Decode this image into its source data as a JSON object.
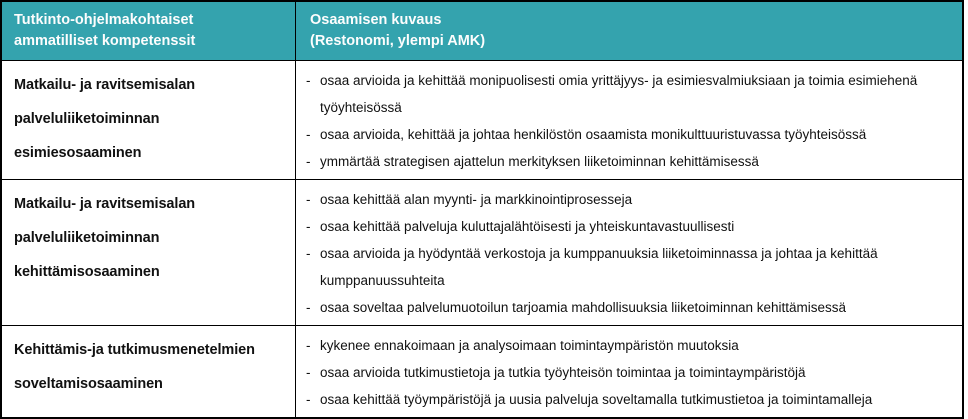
{
  "colors": {
    "header_bg": "#34A3AE",
    "header_text": "#FDFDFD",
    "border": "#000000",
    "body_text": "#111111"
  },
  "table": {
    "list_marker": "-",
    "header": {
      "col1_line1": "Tutkinto-ohjelmakohtaiset",
      "col1_line2": "ammatilliset kompetenssit",
      "col2_line1": "Osaamisen kuvaus",
      "col2_line2": "(Restonomi, ylempi AMK)"
    },
    "rows": [
      {
        "competence": "Matkailu- ja ravitsemisalan palveluliiketoiminnan esimiesosaaminen",
        "items": [
          "osaa arvioida ja kehittää monipuolisesti omia yrittäjyys- ja esimiesvalmiuksiaan ja toimia esimiehenä työyhteisössä",
          "osaa arvioida, kehittää ja johtaa henkilöstön osaamista monikulttuuristuvassa työyhteisössä",
          "ymmärtää strategisen ajattelun merkityksen liiketoiminnan kehittämisessä"
        ]
      },
      {
        "competence": "Matkailu- ja ravitsemisalan palveluliiketoiminnan kehittämisosaaminen",
        "items": [
          "osaa kehittää alan myynti- ja markkinointiprosesseja",
          "osaa kehittää palveluja kuluttajalähtöisesti ja yhteiskuntavastuullisesti",
          "osaa arvioida ja hyödyntää verkostoja ja kumppanuuksia liiketoiminnassa ja johtaa ja kehittää kumppanuussuhteita",
          "osaa soveltaa palvelumuotoilun tarjoamia mahdollisuuksia liiketoiminnan kehittämisessä"
        ]
      },
      {
        "competence": "Kehittämis-ja tutkimusmenetelmien soveltamisosaaminen",
        "items": [
          "kykenee ennakoimaan ja analysoimaan toimintaympäristön muutoksia",
          "osaa arvioida tutkimustietoja ja tutkia työyhteisön toimintaa ja toimintaympäristöjä",
          "osaa kehittää työympäristöjä ja uusia palveluja soveltamalla tutkimustietoa ja toimintamalleja"
        ]
      }
    ]
  }
}
